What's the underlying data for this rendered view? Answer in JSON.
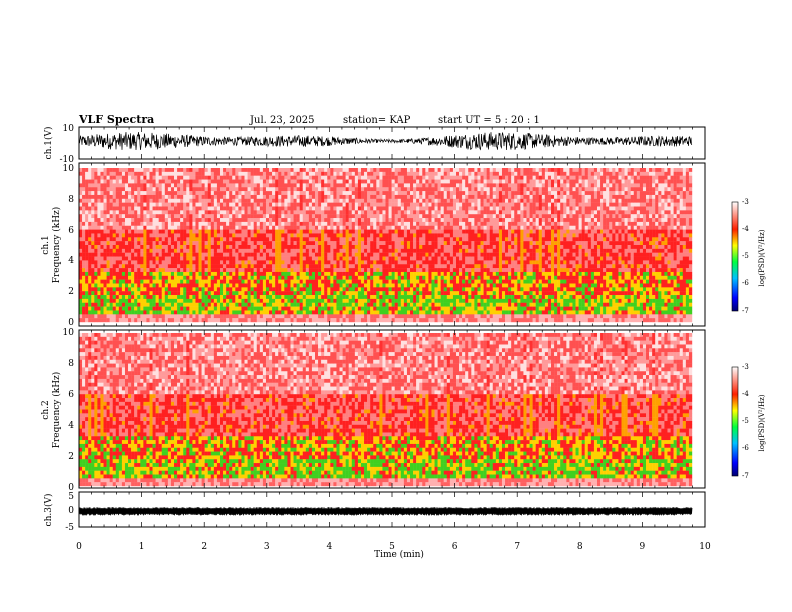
{
  "header": {
    "title": "VLF Spectra",
    "date": "Jul. 23, 2025",
    "station": "station= KAP",
    "start": "start  UT =   5 : 20 : 1"
  },
  "chart_data": [
    {
      "type": "line",
      "id": "ch1-waveform",
      "ylabel": "ch.1(V)",
      "ylim": [
        -10,
        10
      ],
      "ytick_labels": [
        "10",
        "-10"
      ],
      "xlim": [
        0,
        10
      ],
      "series": [
        {
          "name": "ch.1",
          "color": "#000000",
          "amplitude_range": [
            -6,
            6
          ]
        }
      ]
    },
    {
      "type": "heatmap",
      "id": "ch1-spectrogram",
      "ylabel_top": "ch.1",
      "ylabel": "Frequency (kHz)",
      "ylim": [
        0,
        10
      ],
      "ytick_labels": [
        "0",
        "2",
        "4",
        "6",
        "8",
        "10"
      ],
      "xlim": [
        0,
        9.8
      ],
      "colorbar": {
        "label": "log(PSD)(V²/Hz)",
        "range": [
          -7,
          -3
        ],
        "tick_labels": [
          "-3",
          "-4",
          "-5",
          "-6",
          "-7"
        ]
      }
    },
    {
      "type": "heatmap",
      "id": "ch2-spectrogram",
      "ylabel_top": "ch.2",
      "ylabel": "Frequency (kHz)",
      "ylim": [
        0,
        10
      ],
      "ytick_labels": [
        "0",
        "2",
        "4",
        "6",
        "8",
        "10"
      ],
      "xlim": [
        0,
        9.8
      ],
      "colorbar": {
        "label": "log(PSD)(V²/Hz)",
        "range": [
          -7,
          -3
        ],
        "tick_labels": [
          "-3",
          "-4",
          "-5",
          "-6",
          "-7"
        ]
      }
    },
    {
      "type": "line",
      "id": "ch3-waveform",
      "ylabel": "ch.3(V)",
      "ylim": [
        -5,
        5
      ],
      "ytick_labels": [
        "5",
        "0",
        "-5"
      ],
      "xlim": [
        0,
        10
      ],
      "xlabel": "Time (min)",
      "xtick_labels": [
        "0",
        "1",
        "2",
        "3",
        "4",
        "5",
        "6",
        "7",
        "8",
        "9",
        "10"
      ],
      "series": [
        {
          "name": "ch.3",
          "color": "#000000",
          "amplitude_range": [
            -1.5,
            0.5
          ]
        }
      ]
    }
  ],
  "colors": {
    "background": "#ffffff",
    "ink": "#000000",
    "spec_low": "#ff2020",
    "spec_mid": "#ffd000",
    "spec_high": "#40d020"
  }
}
